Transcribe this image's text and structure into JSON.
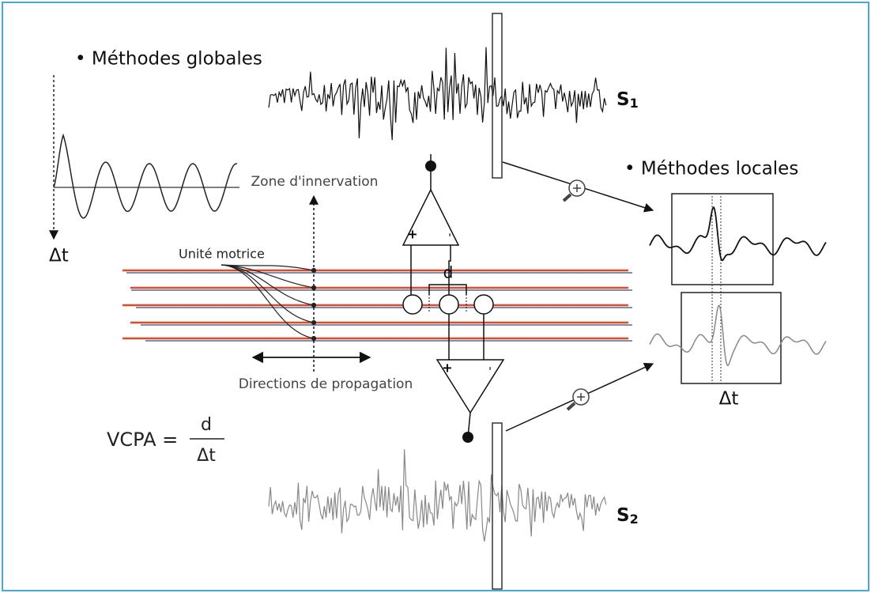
{
  "global_methods": {
    "label": "• Méthodes globales",
    "delta": "Δt"
  },
  "signals": {
    "s1": {
      "symbol": "S",
      "index": "1"
    },
    "s2": {
      "symbol": "S",
      "index": "2"
    }
  },
  "local_methods": {
    "label": "• Méthodes locales",
    "delta": "Δt"
  },
  "labels": {
    "innervation": "Zone d'innervation",
    "motor_unit": "Unité motrice",
    "propagation": "Directions de propagation",
    "distance": "d"
  },
  "amplifiers": {
    "upper": {
      "plus": "+",
      "minus": "-"
    },
    "lower": {
      "plus": "+",
      "minus": "-"
    }
  },
  "formula": {
    "lhs": "VCPA =",
    "numerator": "d",
    "denominator": "Δt"
  }
}
